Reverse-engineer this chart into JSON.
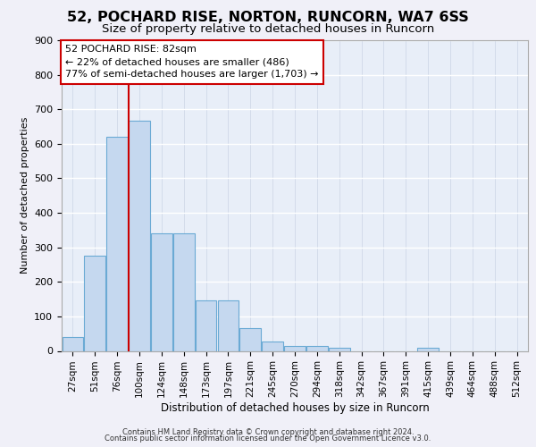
{
  "title1": "52, POCHARD RISE, NORTON, RUNCORN, WA7 6SS",
  "title2": "Size of property relative to detached houses in Runcorn",
  "xlabel": "Distribution of detached houses by size in Runcorn",
  "ylabel": "Number of detached properties",
  "categories": [
    "27sqm",
    "51sqm",
    "76sqm",
    "100sqm",
    "124sqm",
    "148sqm",
    "173sqm",
    "197sqm",
    "221sqm",
    "245sqm",
    "270sqm",
    "294sqm",
    "318sqm",
    "342sqm",
    "367sqm",
    "391sqm",
    "415sqm",
    "439sqm",
    "464sqm",
    "488sqm",
    "512sqm"
  ],
  "values": [
    40,
    277,
    621,
    667,
    340,
    340,
    147,
    147,
    65,
    28,
    15,
    15,
    10,
    0,
    0,
    0,
    8,
    0,
    0,
    0,
    0
  ],
  "bar_color": "#c5d8ef",
  "bar_edgecolor": "#6aaad4",
  "vline_x": 2.5,
  "vline_color": "#cc0000",
  "annotation_line1": "52 POCHARD RISE: 82sqm",
  "annotation_line2": "← 22% of detached houses are smaller (486)",
  "annotation_line3": "77% of semi-detached houses are larger (1,703) →",
  "annotation_box_edgecolor": "#cc0000",
  "annotation_box_facecolor": "#ffffff",
  "footer_line1": "Contains HM Land Registry data © Crown copyright and database right 2024.",
  "footer_line2": "Contains public sector information licensed under the Open Government Licence v3.0.",
  "ylim_max": 900,
  "yticks": [
    0,
    100,
    200,
    300,
    400,
    500,
    600,
    700,
    800,
    900
  ],
  "plot_bg": "#e8eef8",
  "fig_bg": "#f0f0f8",
  "title1_fontsize": 11.5,
  "title2_fontsize": 9.5,
  "xlabel_fontsize": 8.5,
  "ylabel_fontsize": 8.0,
  "tick_fontsize": 7.5,
  "ytick_fontsize": 8.0,
  "annotation_fontsize": 8.0,
  "footer_fontsize": 6.0
}
